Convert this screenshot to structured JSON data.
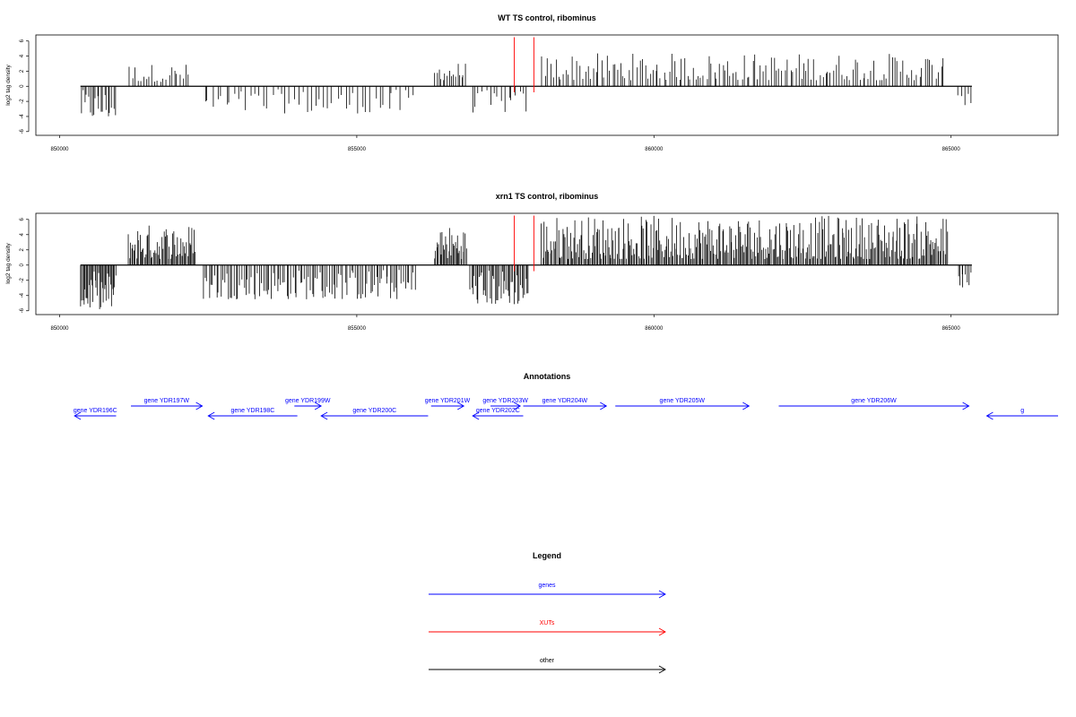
{
  "chart_data": [
    {
      "type": "bar",
      "title": "WT TS control, ribominus",
      "xlabel": "",
      "ylabel": "log2 tag density",
      "xlim": [
        849600,
        866800
      ],
      "ylim": [
        -6.5,
        6.8
      ],
      "yticks": [
        6,
        4,
        2,
        0,
        -2,
        -4,
        -6
      ],
      "xticks": [
        850000,
        855000,
        860000,
        865000
      ],
      "baseline_range": [
        850350,
        865350
      ],
      "bar_color": "#000000",
      "marker_color": "#ff0000",
      "markers": [
        857650,
        857980
      ],
      "marker_height": 6.5,
      "segments": [
        {
          "x0": 850350,
          "x1": 850950,
          "n": 20,
          "min": -4.3,
          "max": -0.5,
          "sign": -1
        },
        {
          "x0": 851150,
          "x1": 852200,
          "n": 22,
          "min": 0.6,
          "max": 3.0,
          "sign": 1
        },
        {
          "x0": 852400,
          "x1": 856000,
          "n": 50,
          "min": -3.6,
          "max": -0.4,
          "sign": -1
        },
        {
          "x0": 856300,
          "x1": 856850,
          "n": 16,
          "min": 0.8,
          "max": 3.2,
          "sign": 1
        },
        {
          "x0": 856900,
          "x1": 857900,
          "n": 16,
          "min": -3.5,
          "max": -0.5,
          "sign": -1
        },
        {
          "x0": 858100,
          "x1": 864900,
          "n": 150,
          "min": 0.8,
          "max": 4.4,
          "sign": 1
        },
        {
          "x0": 865100,
          "x1": 865350,
          "n": 5,
          "min": -2.5,
          "max": -1.0,
          "sign": -1
        }
      ]
    },
    {
      "type": "bar",
      "title": "xrn1 TS control, ribominus",
      "xlabel": "",
      "ylabel": "log2 tag density",
      "xlim": [
        849600,
        866800
      ],
      "ylim": [
        -6.5,
        6.8
      ],
      "yticks": [
        6,
        4,
        2,
        0,
        -2,
        -4,
        -6
      ],
      "xticks": [
        850000,
        855000,
        860000,
        865000
      ],
      "baseline_range": [
        850350,
        865350
      ],
      "bar_color": "#000000",
      "marker_color": "#ff0000",
      "markers": [
        857650,
        857980
      ],
      "marker_height": 6.5,
      "segments": [
        {
          "x0": 850350,
          "x1": 850950,
          "n": 35,
          "min": -5.8,
          "max": -0.8,
          "sign": -1
        },
        {
          "x0": 851150,
          "x1": 852300,
          "n": 60,
          "min": 0.8,
          "max": 5.4,
          "sign": 1
        },
        {
          "x0": 852400,
          "x1": 856000,
          "n": 110,
          "min": -4.5,
          "max": -0.5,
          "sign": -1
        },
        {
          "x0": 856300,
          "x1": 856850,
          "n": 30,
          "min": 0.8,
          "max": 5.2,
          "sign": 1
        },
        {
          "x0": 856900,
          "x1": 857900,
          "n": 45,
          "min": -5.2,
          "max": -0.5,
          "sign": -1
        },
        {
          "x0": 858100,
          "x1": 864950,
          "n": 340,
          "min": 0.8,
          "max": 6.5,
          "sign": 1
        },
        {
          "x0": 865100,
          "x1": 865350,
          "n": 8,
          "min": -3.0,
          "max": -0.8,
          "sign": -1
        }
      ]
    }
  ],
  "annotations": {
    "title": "Annotations",
    "genes": [
      {
        "label": "gene YDR196C",
        "x0": 850250,
        "x1": 850950,
        "strand": "-",
        "row": 1
      },
      {
        "label": "gene YDR197W",
        "x0": 851200,
        "x1": 852400,
        "strand": "+",
        "row": 0
      },
      {
        "label": "gene YDR198C",
        "x0": 852500,
        "x1": 854000,
        "strand": "-",
        "row": 1
      },
      {
        "label": "gene YDR199W",
        "x0": 853950,
        "x1": 854400,
        "strand": "+",
        "row": 0
      },
      {
        "label": "gene YDR200C",
        "x0": 854400,
        "x1": 856200,
        "strand": "-",
        "row": 1
      },
      {
        "label": "gene YDR201W",
        "x0": 856250,
        "x1": 856800,
        "strand": "+",
        "row": 0
      },
      {
        "label": "gene YDR202C",
        "x0": 856950,
        "x1": 857800,
        "strand": "-",
        "row": 1
      },
      {
        "label": "gene YDR203W",
        "x0": 857250,
        "x1": 857750,
        "strand": "+",
        "row": 0
      },
      {
        "label": "gene YDR204W",
        "x0": 857800,
        "x1": 859200,
        "strand": "+",
        "row": 0
      },
      {
        "label": "gene YDR205W",
        "x0": 859350,
        "x1": 861600,
        "strand": "+",
        "row": 0
      },
      {
        "label": "gene YDR206W",
        "x0": 862100,
        "x1": 865300,
        "strand": "+",
        "row": 0
      },
      {
        "label": "g",
        "x0": 865600,
        "x1": 866800,
        "strand": "-",
        "row": 1
      }
    ]
  },
  "legend": {
    "title": "Legend",
    "items": [
      {
        "label": "genes",
        "color": "#0000ff"
      },
      {
        "label": "XUTs",
        "color": "#ff0000"
      },
      {
        "label": "other",
        "color": "#000000"
      }
    ]
  },
  "colors": {
    "gene": "#0000ff",
    "xut": "#ff0000",
    "other": "#000000"
  }
}
